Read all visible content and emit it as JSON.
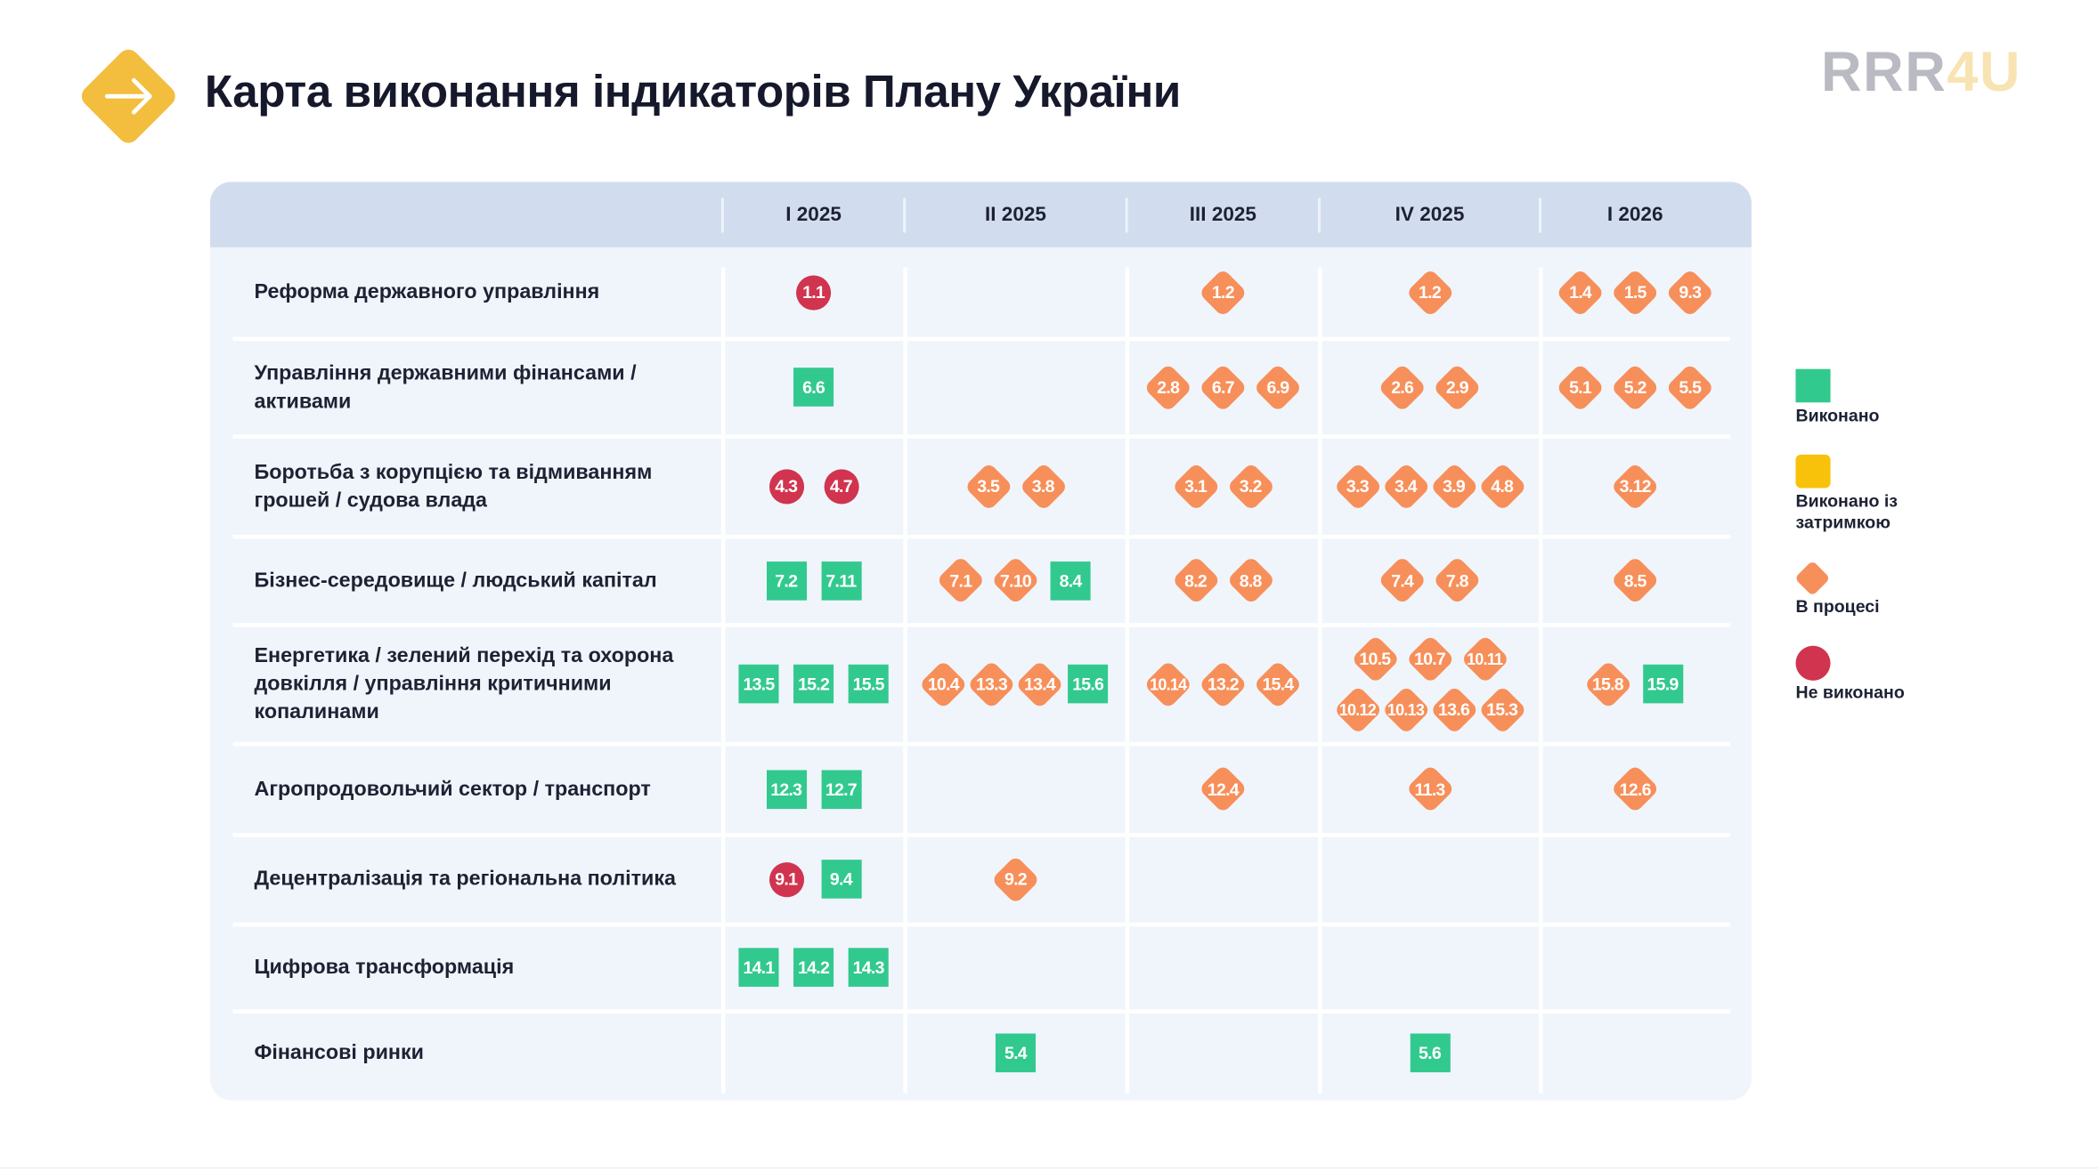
{
  "title": "Карта виконання індикаторів Плану України",
  "logo": {
    "part1": "RRR",
    "part2": "4U"
  },
  "colors": {
    "done": "#32c98e",
    "delayed": "#f8c20a",
    "progress": "#f78f5a",
    "failed": "#d0344f",
    "header": "#d1ddef"
  },
  "columns": [
    "I 2025",
    "II 2025",
    "III 2025",
    "IV 2025",
    "I 2026"
  ],
  "rows": [
    {
      "label": "Реформа державного управління",
      "cells": [
        [
          [
            {
              "id": "1.1",
              "status": "failed"
            }
          ]
        ],
        [],
        [
          [
            {
              "id": "1.2",
              "status": "progress"
            }
          ]
        ],
        [
          [
            {
              "id": "1.2",
              "status": "progress"
            }
          ]
        ],
        [
          [
            {
              "id": "1.4",
              "status": "progress"
            },
            {
              "id": "1.5",
              "status": "progress"
            },
            {
              "id": "9.3",
              "status": "progress"
            }
          ]
        ]
      ]
    },
    {
      "label": "Управління державними фінансами / активами",
      "cells": [
        [
          [
            {
              "id": "6.6",
              "status": "done"
            }
          ]
        ],
        [],
        [
          [
            {
              "id": "2.8",
              "status": "progress"
            },
            {
              "id": "6.7",
              "status": "progress"
            },
            {
              "id": "6.9",
              "status": "progress"
            }
          ]
        ],
        [
          [
            {
              "id": "2.6",
              "status": "progress"
            },
            {
              "id": "2.9",
              "status": "progress"
            }
          ]
        ],
        [
          [
            {
              "id": "5.1",
              "status": "progress"
            },
            {
              "id": "5.2",
              "status": "progress"
            },
            {
              "id": "5.5",
              "status": "progress"
            }
          ]
        ]
      ]
    },
    {
      "label": "Боротьба з корупцією та відмиванням грошей / судова влада",
      "cells": [
        [
          [
            {
              "id": "4.3",
              "status": "failed"
            },
            {
              "id": "4.7",
              "status": "failed"
            }
          ]
        ],
        [
          [
            {
              "id": "3.5",
              "status": "progress"
            },
            {
              "id": "3.8",
              "status": "progress"
            }
          ]
        ],
        [
          [
            {
              "id": "3.1",
              "status": "progress"
            },
            {
              "id": "3.2",
              "status": "progress"
            }
          ]
        ],
        [
          [
            {
              "id": "3.3",
              "status": "progress"
            },
            {
              "id": "3.4",
              "status": "progress"
            },
            {
              "id": "3.9",
              "status": "progress"
            },
            {
              "id": "4.8",
              "status": "progress"
            }
          ]
        ],
        [
          [
            {
              "id": "3.12",
              "status": "progress"
            }
          ]
        ]
      ]
    },
    {
      "label": "Бізнес-середовище / людський капітал",
      "cells": [
        [
          [
            {
              "id": "7.2",
              "status": "done"
            },
            {
              "id": "7.11",
              "status": "done"
            }
          ]
        ],
        [
          [
            {
              "id": "7.1",
              "status": "progress"
            },
            {
              "id": "7.10",
              "status": "progress"
            },
            {
              "id": "8.4",
              "status": "done"
            }
          ]
        ],
        [
          [
            {
              "id": "8.2",
              "status": "progress"
            },
            {
              "id": "8.8",
              "status": "progress"
            }
          ]
        ],
        [
          [
            {
              "id": "7.4",
              "status": "progress"
            },
            {
              "id": "7.8",
              "status": "progress"
            }
          ]
        ],
        [
          [
            {
              "id": "8.5",
              "status": "progress"
            }
          ]
        ]
      ]
    },
    {
      "label": "Енергетика / зелений перехід та охорона довкілля / управління критичними копалинами",
      "cells": [
        [
          [
            {
              "id": "13.5",
              "status": "done"
            },
            {
              "id": "15.2",
              "status": "done"
            },
            {
              "id": "15.5",
              "status": "done"
            }
          ]
        ],
        [
          [
            {
              "id": "10.4",
              "status": "progress"
            },
            {
              "id": "13.3",
              "status": "progress"
            },
            {
              "id": "13.4",
              "status": "progress"
            },
            {
              "id": "15.6",
              "status": "done"
            }
          ]
        ],
        [
          [
            {
              "id": "10.14",
              "status": "progress"
            },
            {
              "id": "13.2",
              "status": "progress"
            },
            {
              "id": "15.4",
              "status": "progress"
            }
          ]
        ],
        [
          [
            {
              "id": "10.5",
              "status": "progress"
            },
            {
              "id": "10.7",
              "status": "progress"
            },
            {
              "id": "10.11",
              "status": "progress"
            }
          ],
          [
            {
              "id": "10.12",
              "status": "progress"
            },
            {
              "id": "10.13",
              "status": "progress"
            },
            {
              "id": "13.6",
              "status": "progress"
            },
            {
              "id": "15.3",
              "status": "progress"
            }
          ]
        ],
        [
          [
            {
              "id": "15.8",
              "status": "progress"
            },
            {
              "id": "15.9",
              "status": "done"
            }
          ]
        ]
      ]
    },
    {
      "label": "Агропродовольчий сектор / транспорт",
      "cells": [
        [
          [
            {
              "id": "12.3",
              "status": "done"
            },
            {
              "id": "12.7",
              "status": "done"
            }
          ]
        ],
        [],
        [
          [
            {
              "id": "12.4",
              "status": "progress"
            }
          ]
        ],
        [
          [
            {
              "id": "11.3",
              "status": "progress"
            }
          ]
        ],
        [
          [
            {
              "id": "12.6",
              "status": "progress"
            }
          ]
        ]
      ]
    },
    {
      "label": "Децентралізація та регіональна політика",
      "cells": [
        [
          [
            {
              "id": "9.1",
              "status": "failed"
            },
            {
              "id": "9.4",
              "status": "done"
            }
          ]
        ],
        [
          [
            {
              "id": "9.2",
              "status": "progress"
            }
          ]
        ],
        [],
        [],
        []
      ]
    },
    {
      "label": "Цифрова трансформація",
      "cells": [
        [
          [
            {
              "id": "14.1",
              "status": "done"
            },
            {
              "id": "14.2",
              "status": "done"
            },
            {
              "id": "14.3",
              "status": "done"
            }
          ]
        ],
        [],
        [],
        [],
        []
      ]
    },
    {
      "label": "Фінансові ринки",
      "cells": [
        [],
        [
          [
            {
              "id": "5.4",
              "status": "done"
            }
          ]
        ],
        [],
        [
          [
            {
              "id": "5.6",
              "status": "done"
            }
          ]
        ],
        []
      ]
    }
  ],
  "legend": [
    {
      "status": "done",
      "label": "Виконано"
    },
    {
      "status": "delayed",
      "label": "Виконано із затримкою"
    },
    {
      "status": "progress",
      "label": "В процесі"
    },
    {
      "status": "failed",
      "label": "Не виконано"
    }
  ]
}
